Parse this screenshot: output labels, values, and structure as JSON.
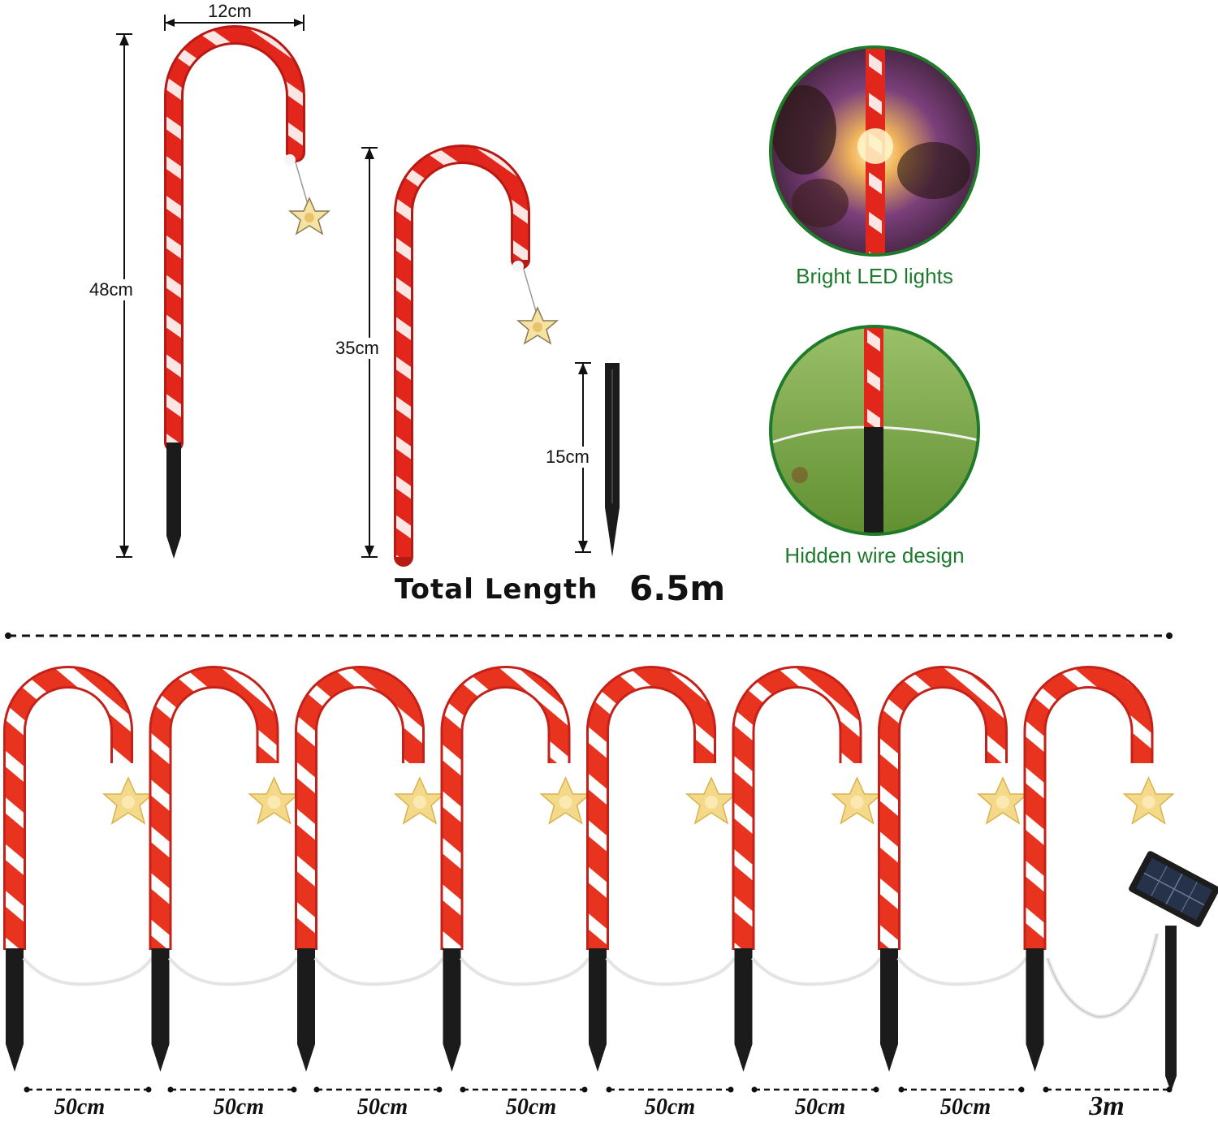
{
  "dimensions": {
    "width_label": "12cm",
    "tall_height_label": "48cm",
    "short_height_label": "35cm",
    "stake_height_label": "15cm"
  },
  "features": [
    {
      "caption": "Bright LED lights",
      "icon": "led-glow-closeup"
    },
    {
      "caption": "Hidden wire design",
      "icon": "grass-stake-closeup"
    }
  ],
  "total": {
    "label": "Total Length",
    "value": "6.5m"
  },
  "string_layout": {
    "cane_count": 8,
    "spacings": [
      "50cm",
      "50cm",
      "50cm",
      "50cm",
      "50cm",
      "50cm",
      "50cm",
      "3m"
    ],
    "end_unit": "solar-panel"
  },
  "colors": {
    "cane_red": "#e3261c",
    "cane_white": "#ffffff",
    "stake_black": "#1b1b1b",
    "star_gold": "#f3d27a",
    "caption_green": "#1e7a2c",
    "circle_border": "#1f7a2a"
  }
}
